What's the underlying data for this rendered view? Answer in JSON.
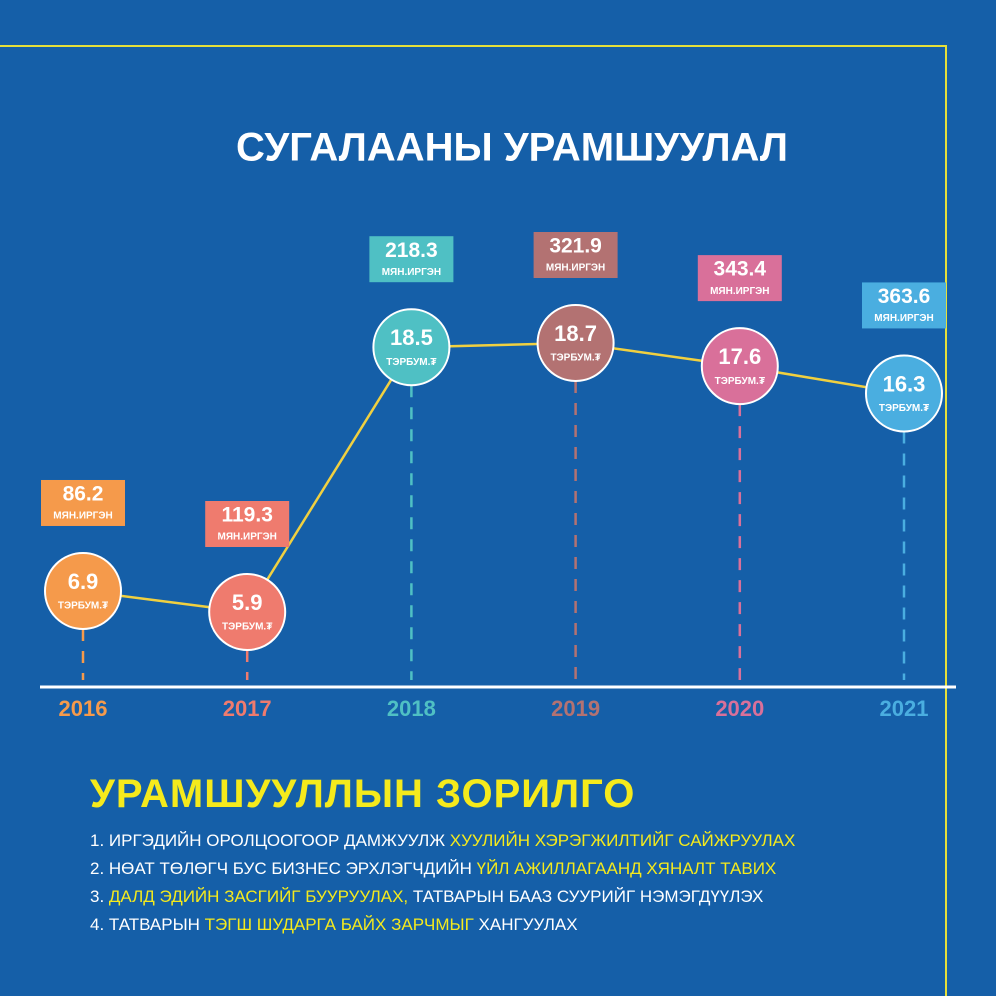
{
  "chart_data": {
    "type": "line",
    "title": "СУГАЛААНЫ УРАМШУУЛАЛ",
    "categories": [
      "2016",
      "2017",
      "2018",
      "2019",
      "2020",
      "2021"
    ],
    "values": [
      6.9,
      5.9,
      18.5,
      18.7,
      17.6,
      16.3
    ],
    "unit": "ТЭРБУМ.₮",
    "colors": [
      "#f59a4b",
      "#ef7b6e",
      "#4fc0c4",
      "#b37272",
      "#d9709a",
      "#4aaee0"
    ],
    "line_color": "#f0d040",
    "participants": {
      "values": [
        86.2,
        119.3,
        218.3,
        321.9,
        343.4,
        363.6
      ],
      "unit": "МЯН.ИРГЭН"
    }
  },
  "goals": {
    "title": "УРАМШУУЛЛЫН ЗОРИЛГО",
    "items": [
      [
        {
          "text": "1. ИРГЭДИЙН ОРОЛЦООГООР ДАМЖУУЛЖ",
          "highlight": false
        },
        {
          "text": "ХУУЛИЙН ХЭРЭГЖИЛТИЙГ САЙЖРУУЛАХ",
          "highlight": true
        }
      ],
      [
        {
          "text": "2. НӨАТ ТӨЛӨГЧ БУС БИЗНЕС ЭРХЛЭГЧДИЙН",
          "highlight": false
        },
        {
          "text": "ҮЙЛ АЖИЛЛАГААНД ХЯНАЛТ ТАВИХ",
          "highlight": true
        }
      ],
      [
        {
          "text": "3.",
          "highlight": false
        },
        {
          "text": "ДАЛД ЭДИЙН ЗАСГИЙГ БУУРУУЛАХ,",
          "highlight": true
        },
        {
          "text": "ТАТВАРЫН БААЗ СУУРИЙГ НЭМЭГДҮҮЛЭХ",
          "highlight": false
        }
      ],
      [
        {
          "text": "4. ТАТВАРЫН",
          "highlight": false
        },
        {
          "text": "ТЭГШ ШУДАРГА БАЙХ ЗАРЧМЫГ",
          "highlight": true
        },
        {
          "text": "ХАНГУУЛАХ",
          "highlight": false
        }
      ]
    ]
  }
}
